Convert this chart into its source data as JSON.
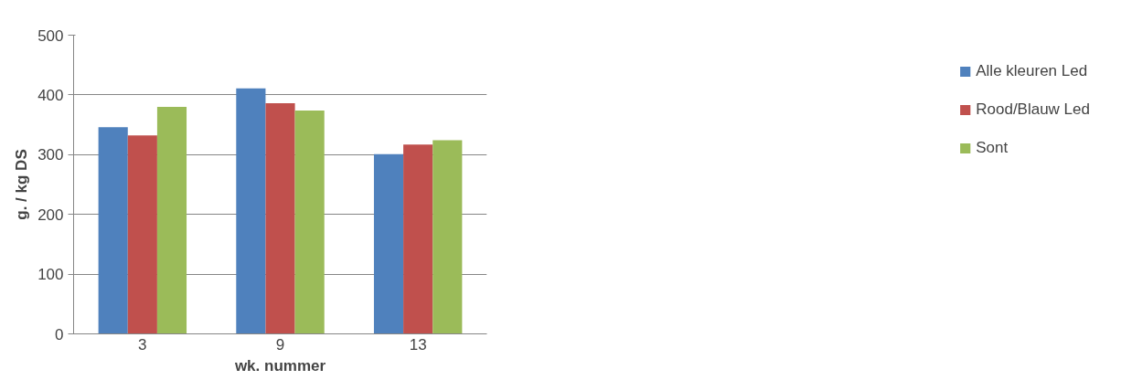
{
  "chart_data": {
    "type": "bar",
    "xlabel": "wk. nummer",
    "ylabel": "g. / kg DS",
    "categories": [
      "3",
      "9",
      "13"
    ],
    "series": [
      {
        "name": "Alle kleuren Led",
        "color": "#4f81bd",
        "values": [
          346,
          411,
          301
        ]
      },
      {
        "name": "Rood/Blauw Led",
        "color": "#c0504d",
        "values": [
          332,
          386,
          317
        ]
      },
      {
        "name": "Sont",
        "color": "#9bbb59",
        "values": [
          380,
          374,
          324
        ]
      }
    ],
    "ylim": [
      0,
      500
    ],
    "yticks": [
      0,
      100,
      200,
      300,
      400,
      500
    ],
    "grid": "y",
    "legend": "right"
  }
}
